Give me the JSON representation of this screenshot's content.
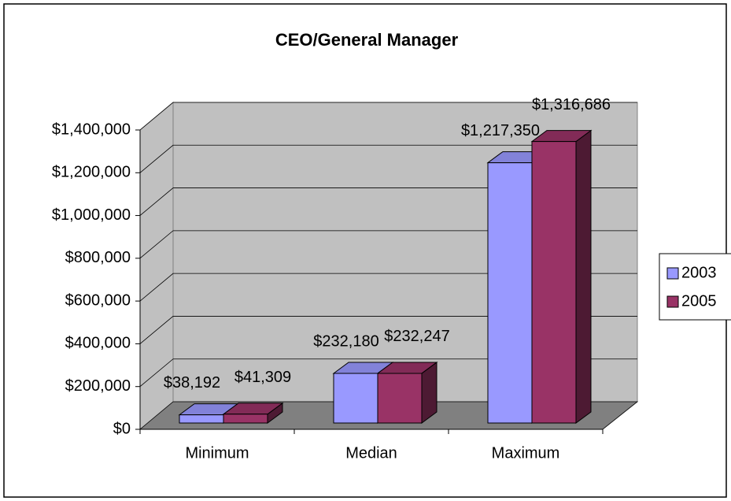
{
  "chart_data": {
    "type": "bar3d",
    "title": "CEO/General Manager",
    "categories": [
      "Minimum",
      "Median",
      "Maximum"
    ],
    "series": [
      {
        "name": "2003",
        "color": "#9999ff",
        "values": [
          38192,
          232180,
          1217350
        ],
        "value_labels": [
          "$38,192",
          "$232,180",
          "$1,217,350"
        ]
      },
      {
        "name": "2005",
        "color": "#993366",
        "values": [
          41309,
          232247,
          1316686
        ],
        "value_labels": [
          "$41,309",
          "$232,247",
          "$1,316,686"
        ]
      }
    ],
    "ylim": [
      0,
      1400000
    ],
    "yticks": [
      {
        "value": 0,
        "label": "$0"
      },
      {
        "value": 200000,
        "label": "$200,000"
      },
      {
        "value": 400000,
        "label": "$400,000"
      },
      {
        "value": 600000,
        "label": "$600,000"
      },
      {
        "value": 800000,
        "label": "$800,000"
      },
      {
        "value": 1000000,
        "label": "$1,000,000"
      },
      {
        "value": 1200000,
        "label": "$1,200,000"
      },
      {
        "value": 1400000,
        "label": "$1,400,000"
      }
    ],
    "grid": true,
    "legend": "right"
  }
}
